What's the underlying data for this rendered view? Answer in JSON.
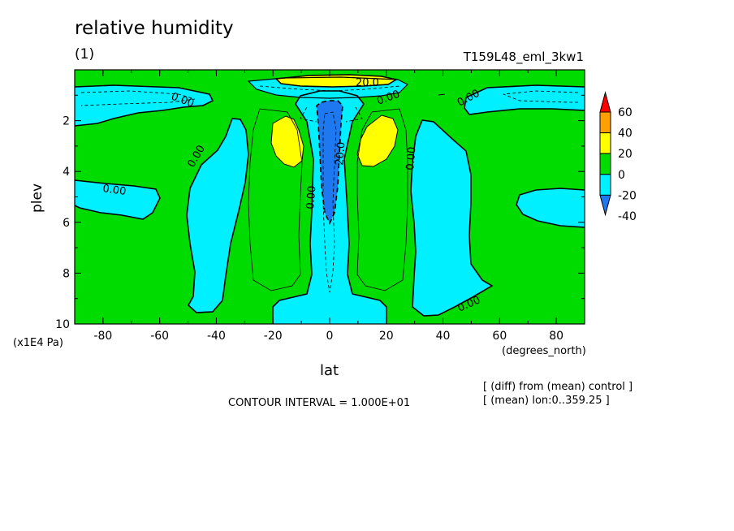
{
  "header": {
    "title": "relative humidity",
    "subtitle": "(1)",
    "run_name": "T159L48_eml_3kw1"
  },
  "footer": {
    "contour_interval": "CONTOUR INTERVAL = 1.000E+01",
    "note_diff": "[ (diff) from (mean) control ]",
    "note_mean": "[ (mean) lon:0..359.25 ]"
  },
  "chart_data": {
    "type": "heatmap",
    "title": "relative humidity",
    "subtitle": "(1)",
    "xlabel": "lat",
    "ylabel": "plev",
    "x_unit": "(degrees_north)",
    "y_unit": "(x1E4 Pa)",
    "xlim": [
      -90,
      90
    ],
    "ylim": [
      10,
      0
    ],
    "y_axis_inverted": true,
    "x_ticks": [
      -80,
      -60,
      -40,
      -20,
      0,
      20,
      40,
      60,
      80
    ],
    "x_tick_labels": [
      "-80",
      "-60",
      "-40",
      "-20",
      "0",
      "20",
      "40",
      "60",
      "80"
    ],
    "y_ticks": [
      2,
      4,
      6,
      8,
      10
    ],
    "y_tick_labels": [
      "2",
      "4",
      "6",
      "8",
      "10"
    ],
    "contour_interval": 10,
    "colorbar": {
      "levels": [
        -40,
        -20,
        0,
        20,
        40,
        60
      ],
      "tick_labels": [
        "-40",
        "-20",
        "0",
        "20",
        "40",
        "60"
      ],
      "colors": [
        "#1e78f0",
        "#00f0ff",
        "#00dc00",
        "#ffff00",
        "#ffa000",
        "#ff0000"
      ]
    },
    "regions": [
      {
        "label": "tropical stratosphere moist band",
        "value_range": [
          20,
          40
        ],
        "lat": [
          -24,
          24
        ],
        "plev": [
          0.2,
          0.5
        ]
      },
      {
        "label": "left subtropical moist maximum",
        "value_range": [
          20,
          40
        ],
        "lat": [
          -21,
          -9
        ],
        "plev": [
          1.5,
          3.5
        ]
      },
      {
        "label": "right subtropical moist maximum",
        "value_range": [
          20,
          40
        ],
        "lat": [
          9,
          21
        ],
        "plev": [
          1.5,
          3.5
        ]
      },
      {
        "label": "equatorial dry core",
        "value_range": [
          -40,
          -20
        ],
        "lat": [
          -4,
          4
        ],
        "plev": [
          1.5,
          6.0
        ]
      }
    ],
    "contour_labels": [
      "20.0",
      "0.00",
      "0.00",
      "0.00",
      "0.00",
      "0.00",
      "0.00",
      "0.00",
      "0.00",
      "20.0"
    ]
  }
}
